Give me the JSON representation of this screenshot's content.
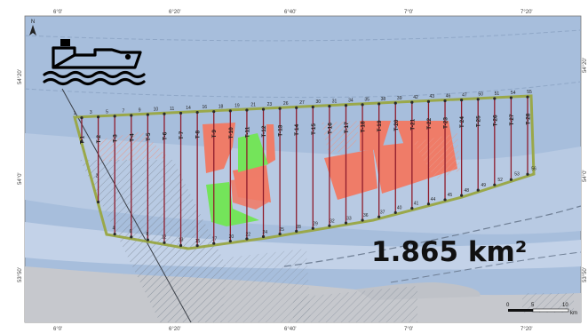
{
  "map": {
    "area_label": "1.865 km²",
    "north_label": "N",
    "icons": [
      "ship-icon",
      "north-arrow-icon"
    ],
    "colors": {
      "sea": "#a7bedc",
      "sea_shallow": "#b9cbe3",
      "land": "#c6c8cd",
      "boundary": "#9aa84a",
      "transect": "#8e1c2c",
      "red_zone": "#ef7c68",
      "green_zone": "#74e45a"
    },
    "lon_labels": [
      "6°0'",
      "6°20'",
      "6°40'",
      "7°0'",
      "7°20'"
    ],
    "lat_labels": [
      "54°20'",
      "54°0'",
      "53°50'"
    ],
    "transect_labels": [
      "T-1",
      "T-2",
      "T-3",
      "T-4",
      "T-5",
      "T-6",
      "T-7",
      "T-8",
      "T-9",
      "T-10",
      "T-11",
      "T-12",
      "T-13",
      "T-14",
      "T-15",
      "T-16",
      "T-17",
      "T-18",
      "T-19",
      "T-20",
      "T-21",
      "T-22",
      "T-23",
      "T-24",
      "T-25",
      "T-26",
      "T-27",
      "T-28"
    ],
    "station_numbers_top": [
      "1",
      "3",
      "5",
      "7",
      "9",
      "10",
      "11",
      "14",
      "16",
      "18",
      "19",
      "21",
      "23",
      "26",
      "27",
      "30",
      "31",
      "34",
      "35",
      "38",
      "39",
      "42",
      "43",
      "46",
      "47",
      "50",
      "51",
      "54",
      "55"
    ],
    "station_numbers_bottom": [
      "2",
      "4",
      "6",
      "8",
      "12",
      "13",
      "15",
      "17",
      "20",
      "22",
      "24",
      "25",
      "28",
      "29",
      "32",
      "33",
      "36",
      "37",
      "40",
      "41",
      "44",
      "45",
      "48",
      "49",
      "52",
      "53",
      "56"
    ],
    "scale": {
      "labels": [
        "0",
        "5",
        "10"
      ],
      "unit": "km"
    }
  }
}
